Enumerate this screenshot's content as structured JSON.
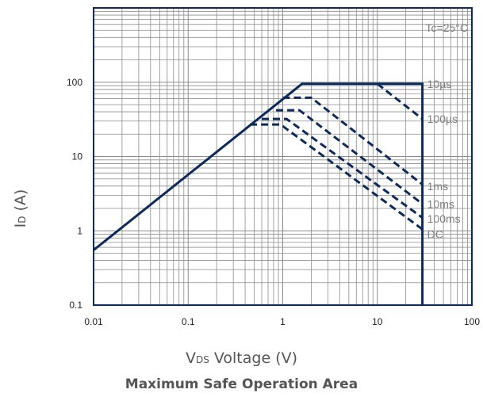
{
  "chart_data": {
    "type": "line",
    "title": "Maximum Safe Operation Area",
    "xlabel": {
      "main": "V",
      "sub": "DS",
      "rest": " Voltage (V)"
    },
    "ylabel": {
      "main": "I",
      "sub": "D",
      "rest": " (A)"
    },
    "x_scale": "log",
    "y_scale": "log",
    "xlim": [
      0.01,
      100
    ],
    "ylim": [
      0.1,
      1000
    ],
    "x_ticks": [
      {
        "value": 0.01,
        "label": "0.01"
      },
      {
        "value": 0.1,
        "label": "0.1"
      },
      {
        "value": 1,
        "label": "1"
      },
      {
        "value": 10,
        "label": "10"
      },
      {
        "value": 100,
        "label": "100"
      }
    ],
    "y_ticks": [
      {
        "value": 0.1,
        "label": "0.1"
      },
      {
        "value": 1,
        "label": "1"
      },
      {
        "value": 10,
        "label": "10"
      },
      {
        "value": 100,
        "label": "100"
      }
    ],
    "grid": true,
    "condition_label": "Tc=25°C",
    "colors": {
      "line": "#0d2a5c",
      "grid": "#8c8c8c",
      "label": "#7f7f7f"
    },
    "series": [
      {
        "name": "10µs",
        "style": "solid",
        "points": [
          [
            0.01,
            0.55
          ],
          [
            1.6,
            95
          ],
          [
            30,
            95
          ],
          [
            30,
            0.1
          ]
        ]
      },
      {
        "name": "100µs",
        "style": "dashed",
        "points": [
          [
            10,
            95
          ],
          [
            30,
            32
          ]
        ]
      },
      {
        "name": "1ms",
        "style": "dashed",
        "points": [
          [
            1.0,
            62
          ],
          [
            2.0,
            62
          ],
          [
            30,
            4.2
          ]
        ]
      },
      {
        "name": "10ms",
        "style": "dashed",
        "points": [
          [
            0.85,
            42
          ],
          [
            1.5,
            42
          ],
          [
            30,
            2.3
          ]
        ]
      },
      {
        "name": "100ms",
        "style": "dashed",
        "points": [
          [
            0.6,
            32
          ],
          [
            1.1,
            32
          ],
          [
            30,
            1.5
          ]
        ]
      },
      {
        "name": "DC",
        "style": "dashed",
        "points": [
          [
            0.45,
            27
          ],
          [
            0.95,
            27
          ],
          [
            30,
            1.05
          ]
        ]
      }
    ],
    "curve_labels": [
      {
        "text": "10µs",
        "x": 30,
        "y": 95
      },
      {
        "text": "100µs",
        "x": 30,
        "y": 32
      },
      {
        "text": "1ms",
        "x": 30,
        "y": 4.0
      },
      {
        "text": "10ms",
        "x": 30,
        "y": 2.3
      },
      {
        "text": "100ms",
        "x": 30,
        "y": 1.45
      },
      {
        "text": "DC",
        "x": 30,
        "y": 0.9
      }
    ]
  }
}
